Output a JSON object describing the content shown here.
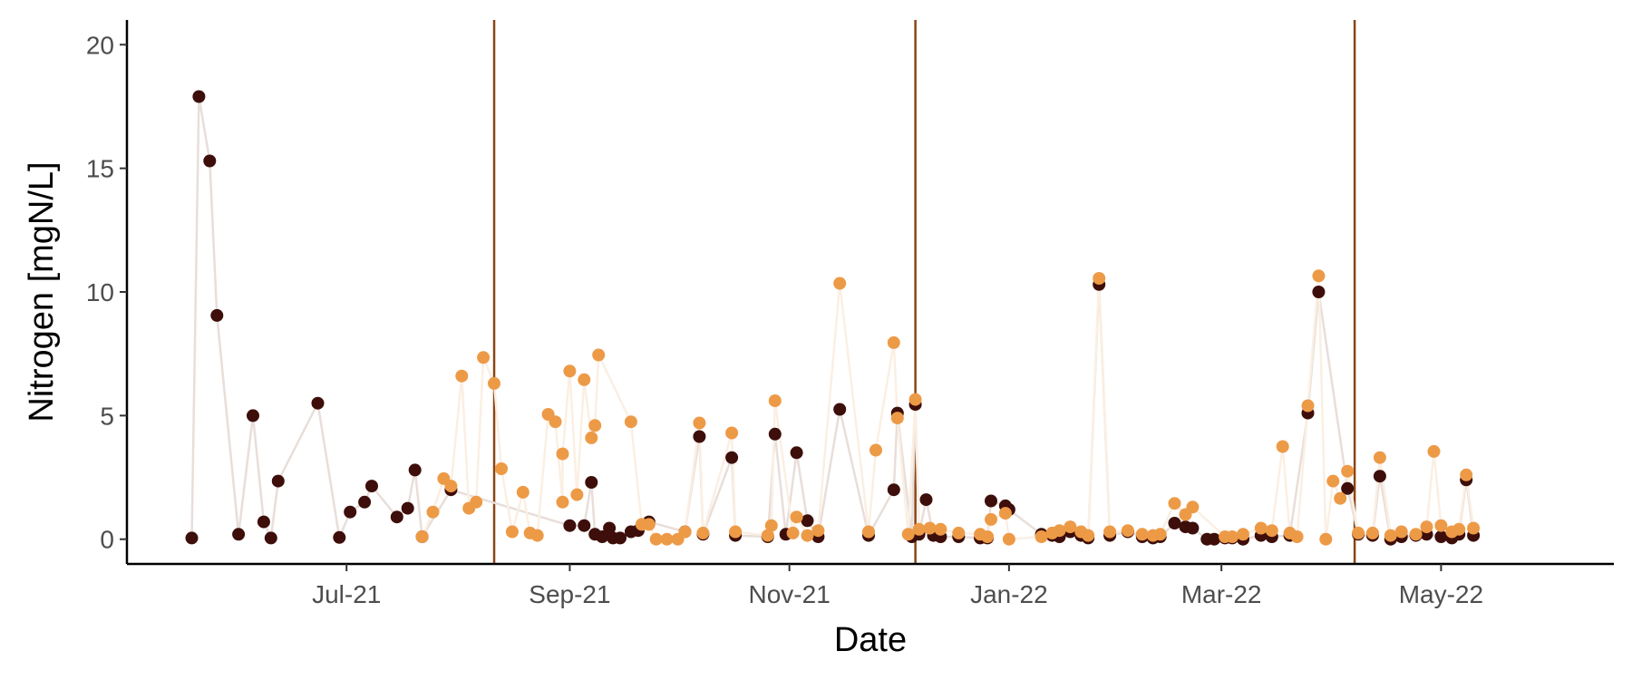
{
  "chart_data": {
    "type": "scatter",
    "xlabel": "Date",
    "ylabel": "Nitrogen [mgN/L]",
    "ylim": [
      -1,
      21
    ],
    "xlim": [
      "2021-05-01",
      "2022-06-18"
    ],
    "x_ticks": [
      {
        "date": "2021-07-01",
        "label": "Jul-21"
      },
      {
        "date": "2021-09-01",
        "label": "Sep-21"
      },
      {
        "date": "2021-11-01",
        "label": "Nov-21"
      },
      {
        "date": "2022-01-01",
        "label": "Jan-22"
      },
      {
        "date": "2022-03-01",
        "label": "Mar-22"
      },
      {
        "date": "2022-05-01",
        "label": "May-22"
      }
    ],
    "y_ticks": [
      0,
      5,
      10,
      15,
      20
    ],
    "vlines": [
      "2021-08-11",
      "2021-12-06",
      "2022-04-07"
    ],
    "vline_color": "#8B4513",
    "grid": false,
    "legend": "none",
    "series": [
      {
        "color": "#3D0E0A",
        "line_color": "#E8DEDA",
        "points": [
          [
            "2021-05-19",
            0.05
          ],
          [
            "2021-05-21",
            17.9
          ],
          [
            "2021-05-24",
            15.3
          ],
          [
            "2021-05-26",
            9.05
          ],
          [
            "2021-06-01",
            0.2
          ],
          [
            "2021-06-05",
            5.0
          ],
          [
            "2021-06-08",
            0.7
          ],
          [
            "2021-06-10",
            0.05
          ],
          [
            "2021-06-12",
            2.35
          ],
          [
            "2021-06-23",
            5.5
          ],
          [
            "2021-06-29",
            0.07
          ],
          [
            "2021-07-02",
            1.1
          ],
          [
            "2021-07-06",
            1.5
          ],
          [
            "2021-07-08",
            2.15
          ],
          [
            "2021-07-15",
            0.9
          ],
          [
            "2021-07-18",
            1.25
          ],
          [
            "2021-07-20",
            2.8
          ],
          [
            "2021-07-22",
            0.1
          ],
          [
            "2021-07-30",
            2.0
          ],
          [
            "2021-09-01",
            0.55
          ],
          [
            "2021-09-05",
            0.55
          ],
          [
            "2021-09-07",
            2.3
          ],
          [
            "2021-09-08",
            0.2
          ],
          [
            "2021-09-10",
            0.1
          ],
          [
            "2021-09-12",
            0.45
          ],
          [
            "2021-09-13",
            0.05
          ],
          [
            "2021-09-15",
            0.05
          ],
          [
            "2021-09-18",
            0.3
          ],
          [
            "2021-09-20",
            0.35
          ],
          [
            "2021-09-23",
            0.7
          ],
          [
            "2021-10-03",
            0.3
          ],
          [
            "2021-10-07",
            4.15
          ],
          [
            "2021-10-08",
            0.2
          ],
          [
            "2021-10-16",
            3.3
          ],
          [
            "2021-10-17",
            0.15
          ],
          [
            "2021-10-26",
            0.1
          ],
          [
            "2021-10-28",
            4.25
          ],
          [
            "2021-10-31",
            0.2
          ],
          [
            "2021-11-03",
            3.5
          ],
          [
            "2021-11-06",
            0.75
          ],
          [
            "2021-11-09",
            0.1
          ],
          [
            "2021-11-15",
            5.25
          ],
          [
            "2021-11-23",
            0.15
          ],
          [
            "2021-11-30",
            2.0
          ],
          [
            "2021-12-01",
            5.1
          ],
          [
            "2021-12-05",
            0.1
          ],
          [
            "2021-12-06",
            5.45
          ],
          [
            "2021-12-07",
            0.2
          ],
          [
            "2021-12-09",
            1.6
          ],
          [
            "2021-12-11",
            0.15
          ],
          [
            "2021-12-13",
            0.1
          ],
          [
            "2021-12-18",
            0.1
          ],
          [
            "2021-12-24",
            0.05
          ],
          [
            "2021-12-26",
            0.05
          ],
          [
            "2021-12-27",
            1.55
          ],
          [
            "2021-12-31",
            1.35
          ],
          [
            "2022-01-01",
            1.2
          ],
          [
            "2022-01-10",
            0.2
          ],
          [
            "2022-01-13",
            0.15
          ],
          [
            "2022-01-15",
            0.1
          ],
          [
            "2022-01-18",
            0.3
          ],
          [
            "2022-01-21",
            0.15
          ],
          [
            "2022-01-23",
            0.05
          ],
          [
            "2022-01-26",
            10.3
          ],
          [
            "2022-01-29",
            0.15
          ],
          [
            "2022-02-03",
            0.3
          ],
          [
            "2022-02-07",
            0.1
          ],
          [
            "2022-02-10",
            0.05
          ],
          [
            "2022-02-12",
            0.1
          ],
          [
            "2022-02-16",
            0.65
          ],
          [
            "2022-02-19",
            0.5
          ],
          [
            "2022-02-21",
            0.45
          ],
          [
            "2022-02-25",
            0.0
          ],
          [
            "2022-02-27",
            0.0
          ],
          [
            "2022-03-02",
            0.05
          ],
          [
            "2022-03-04",
            0.05
          ],
          [
            "2022-03-07",
            0.0
          ],
          [
            "2022-03-12",
            0.15
          ],
          [
            "2022-03-15",
            0.1
          ],
          [
            "2022-03-20",
            0.15
          ],
          [
            "2022-03-25",
            5.1
          ],
          [
            "2022-03-28",
            10.0
          ],
          [
            "2022-04-05",
            2.05
          ],
          [
            "2022-04-08",
            0.2
          ],
          [
            "2022-04-12",
            0.15
          ],
          [
            "2022-04-14",
            2.55
          ],
          [
            "2022-04-17",
            0.0
          ],
          [
            "2022-04-20",
            0.1
          ],
          [
            "2022-04-24",
            0.15
          ],
          [
            "2022-04-27",
            0.2
          ],
          [
            "2022-05-01",
            0.1
          ],
          [
            "2022-05-04",
            0.05
          ],
          [
            "2022-05-06",
            0.2
          ],
          [
            "2022-05-08",
            2.4
          ],
          [
            "2022-05-10",
            0.15
          ]
        ]
      },
      {
        "color": "#ED9A47",
        "line_color": "#FBEFE3",
        "points": [
          [
            "2021-07-22",
            0.1
          ],
          [
            "2021-07-25",
            1.1
          ],
          [
            "2021-07-28",
            2.45
          ],
          [
            "2021-07-30",
            2.15
          ],
          [
            "2021-08-02",
            6.6
          ],
          [
            "2021-08-04",
            1.25
          ],
          [
            "2021-08-06",
            1.5
          ],
          [
            "2021-08-08",
            7.35
          ],
          [
            "2021-08-11",
            6.3
          ],
          [
            "2021-08-13",
            2.85
          ],
          [
            "2021-08-16",
            0.3
          ],
          [
            "2021-08-19",
            1.9
          ],
          [
            "2021-08-21",
            0.25
          ],
          [
            "2021-08-23",
            0.15
          ],
          [
            "2021-08-26",
            5.05
          ],
          [
            "2021-08-28",
            4.75
          ],
          [
            "2021-08-30",
            1.5
          ],
          [
            "2021-08-30",
            3.45
          ],
          [
            "2021-09-01",
            6.8
          ],
          [
            "2021-09-03",
            1.8
          ],
          [
            "2021-09-05",
            6.45
          ],
          [
            "2021-09-07",
            4.1
          ],
          [
            "2021-09-08",
            4.6
          ],
          [
            "2021-09-09",
            7.45
          ],
          [
            "2021-09-18",
            4.75
          ],
          [
            "2021-09-21",
            0.6
          ],
          [
            "2021-09-23",
            0.6
          ],
          [
            "2021-09-25",
            0.0
          ],
          [
            "2021-09-28",
            0.0
          ],
          [
            "2021-10-01",
            0.0
          ],
          [
            "2021-10-03",
            0.3
          ],
          [
            "2021-10-07",
            4.7
          ],
          [
            "2021-10-08",
            0.25
          ],
          [
            "2021-10-16",
            4.3
          ],
          [
            "2021-10-17",
            0.3
          ],
          [
            "2021-10-26",
            0.15
          ],
          [
            "2021-10-27",
            0.55
          ],
          [
            "2021-10-28",
            5.6
          ],
          [
            "2021-11-02",
            0.25
          ],
          [
            "2021-11-03",
            0.9
          ],
          [
            "2021-11-06",
            0.15
          ],
          [
            "2021-11-09",
            0.35
          ],
          [
            "2021-11-15",
            10.35
          ],
          [
            "2021-11-23",
            0.3
          ],
          [
            "2021-11-25",
            3.6
          ],
          [
            "2021-11-30",
            7.95
          ],
          [
            "2021-12-01",
            4.9
          ],
          [
            "2021-12-04",
            0.2
          ],
          [
            "2021-12-06",
            5.65
          ],
          [
            "2021-12-07",
            0.4
          ],
          [
            "2021-12-10",
            0.45
          ],
          [
            "2021-12-13",
            0.4
          ],
          [
            "2021-12-18",
            0.25
          ],
          [
            "2021-12-24",
            0.2
          ],
          [
            "2021-12-26",
            0.1
          ],
          [
            "2021-12-27",
            0.8
          ],
          [
            "2021-12-31",
            1.05
          ],
          [
            "2022-01-01",
            0.0
          ],
          [
            "2022-01-10",
            0.1
          ],
          [
            "2022-01-13",
            0.25
          ],
          [
            "2022-01-15",
            0.35
          ],
          [
            "2022-01-18",
            0.5
          ],
          [
            "2022-01-21",
            0.3
          ],
          [
            "2022-01-23",
            0.15
          ],
          [
            "2022-01-26",
            10.55
          ],
          [
            "2022-01-29",
            0.3
          ],
          [
            "2022-02-03",
            0.35
          ],
          [
            "2022-02-07",
            0.2
          ],
          [
            "2022-02-10",
            0.15
          ],
          [
            "2022-02-12",
            0.2
          ],
          [
            "2022-02-16",
            1.45
          ],
          [
            "2022-02-19",
            1.0
          ],
          [
            "2022-02-21",
            1.3
          ],
          [
            "2022-03-02",
            0.1
          ],
          [
            "2022-03-04",
            0.1
          ],
          [
            "2022-03-07",
            0.2
          ],
          [
            "2022-03-12",
            0.45
          ],
          [
            "2022-03-15",
            0.35
          ],
          [
            "2022-03-18",
            3.75
          ],
          [
            "2022-03-20",
            0.25
          ],
          [
            "2022-03-22",
            0.1
          ],
          [
            "2022-03-25",
            5.4
          ],
          [
            "2022-03-28",
            10.65
          ],
          [
            "2022-03-30",
            0.0
          ],
          [
            "2022-04-01",
            2.35
          ],
          [
            "2022-04-03",
            1.65
          ],
          [
            "2022-04-05",
            2.75
          ],
          [
            "2022-04-08",
            0.25
          ],
          [
            "2022-04-12",
            0.25
          ],
          [
            "2022-04-14",
            3.3
          ],
          [
            "2022-04-17",
            0.15
          ],
          [
            "2022-04-20",
            0.3
          ],
          [
            "2022-04-24",
            0.2
          ],
          [
            "2022-04-27",
            0.5
          ],
          [
            "2022-04-29",
            3.55
          ],
          [
            "2022-05-01",
            0.55
          ],
          [
            "2022-05-04",
            0.3
          ],
          [
            "2022-05-06",
            0.4
          ],
          [
            "2022-05-08",
            2.6
          ],
          [
            "2022-05-10",
            0.45
          ]
        ]
      }
    ]
  }
}
